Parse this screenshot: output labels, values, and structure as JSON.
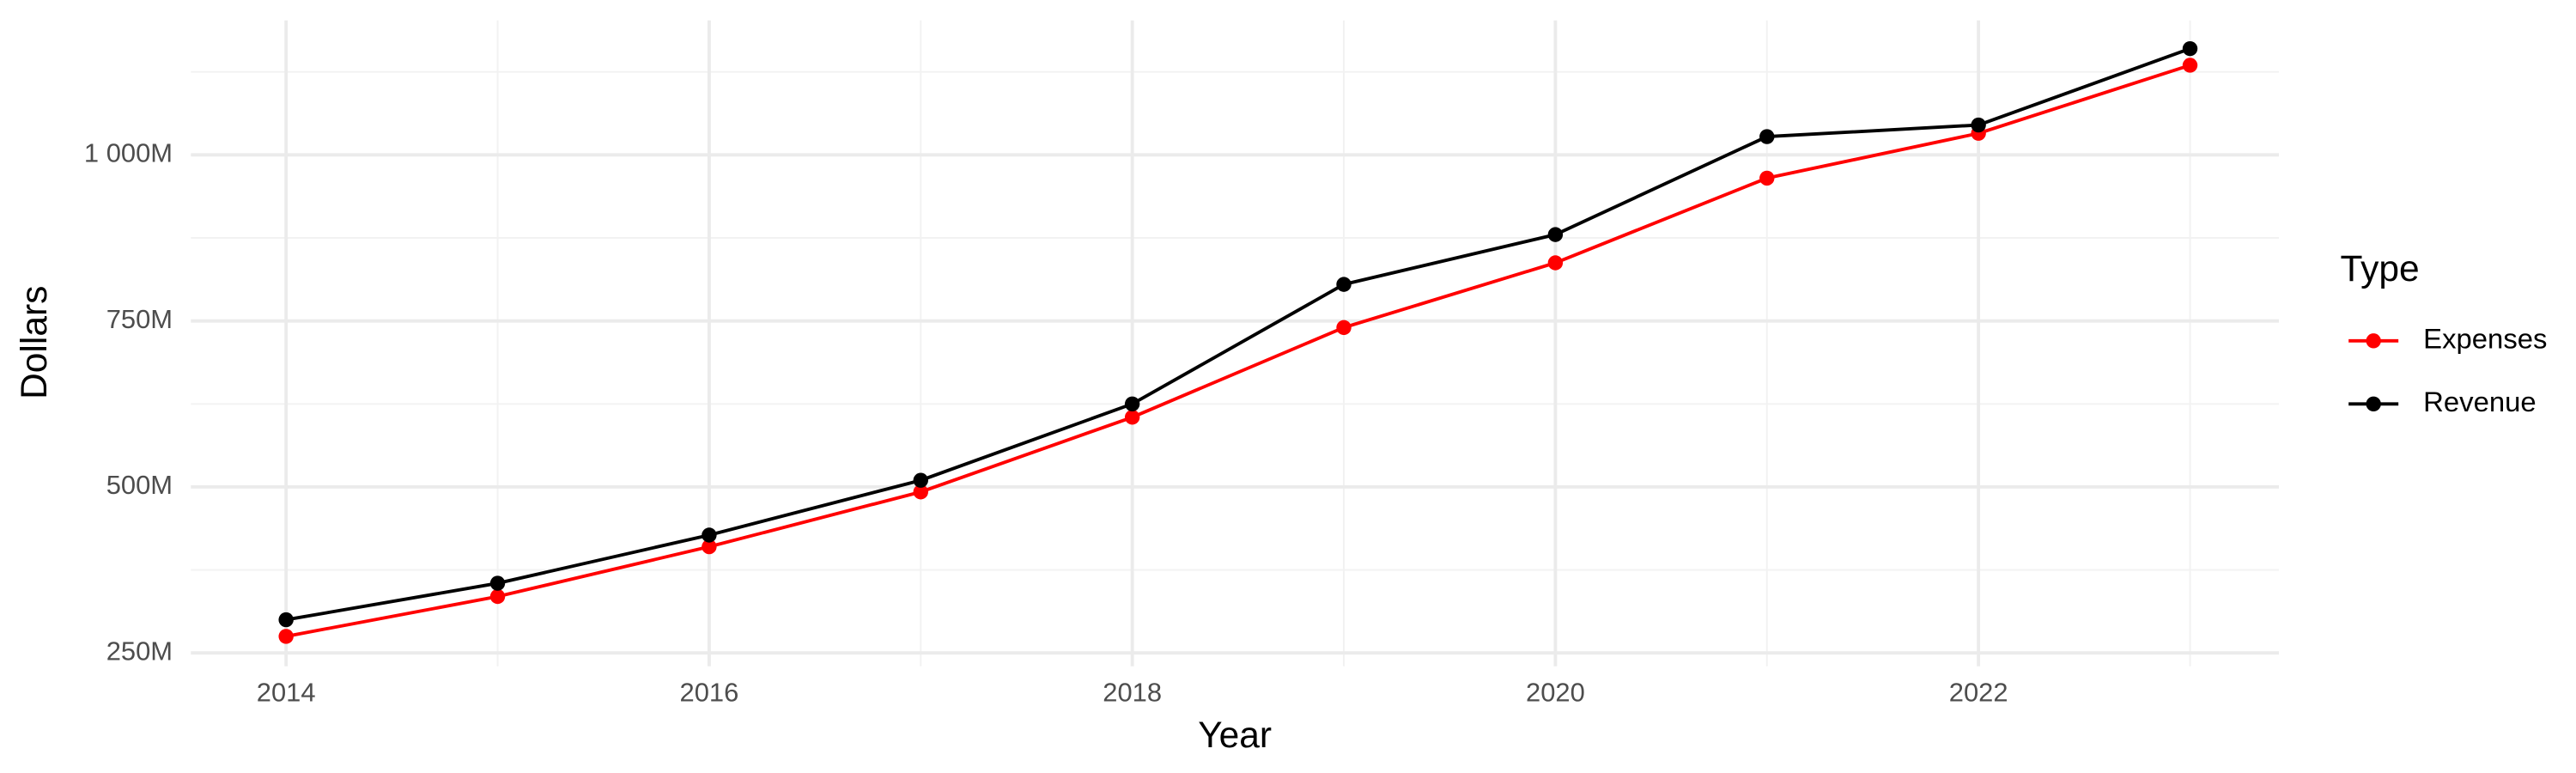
{
  "chart_data": {
    "type": "line",
    "x_label": "Year",
    "y_label": "Dollars",
    "legend_title": "Type",
    "x": [
      2014,
      2015,
      2016,
      2017,
      2018,
      2019,
      2020,
      2021,
      2022,
      2023
    ],
    "series": [
      {
        "name": "Expenses",
        "color": "#ff0000",
        "values": [
          275,
          335,
          410,
          492.5,
          605,
          740,
          837.5,
          965,
          1032.5,
          1135
        ]
      },
      {
        "name": "Revenue",
        "color": "#000000",
        "values": [
          300,
          355,
          427.5,
          510,
          625,
          805,
          880,
          1027.5,
          1045,
          1160
        ]
      }
    ],
    "xlim": [
      2013.55,
      2023.42
    ],
    "ylim": [
      230,
      1202.5
    ],
    "xticks": [
      2014,
      2016,
      2018,
      2020,
      2022
    ],
    "yticks": [
      {
        "value": 250,
        "label": "250M"
      },
      {
        "value": 500,
        "label": "500M"
      },
      {
        "value": 750,
        "label": "750M"
      },
      {
        "value": 1000,
        "label": "1 000M"
      }
    ],
    "grid": true,
    "legend": "right"
  }
}
